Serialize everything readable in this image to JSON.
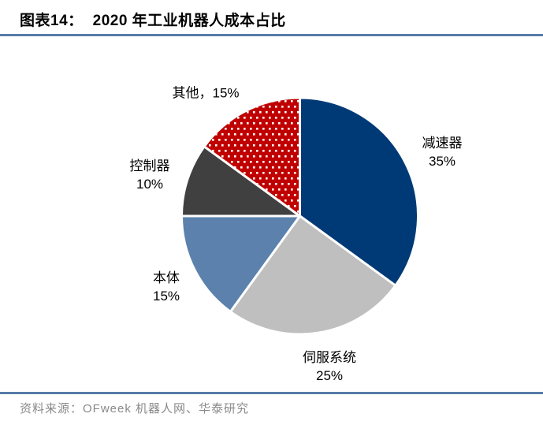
{
  "header": {
    "tag": "图表14：",
    "title": "2020 年工业机器人成本占比"
  },
  "chart_data": {
    "type": "pie",
    "title": "2020 年工业机器人成本占比",
    "unit": "%",
    "start_angle_deg": 0,
    "direction": "clockwise",
    "legend_position": "none",
    "slices": [
      {
        "name": "减速器",
        "value": 35,
        "color": "#003A76",
        "fill_style": "solid",
        "label_lines": [
          "减速器",
          "35%"
        ]
      },
      {
        "name": "伺服系统",
        "value": 25,
        "color": "#BFBFBF",
        "fill_style": "solid",
        "label_lines": [
          "伺服系统",
          "25%"
        ]
      },
      {
        "name": "本体",
        "value": 15,
        "color": "#5B81AC",
        "fill_style": "solid",
        "label_lines": [
          "本体",
          "15%"
        ]
      },
      {
        "name": "控制器",
        "value": 10,
        "color": "#404040",
        "fill_style": "solid",
        "label_lines": [
          "控制器",
          "10%"
        ]
      },
      {
        "name": "其他",
        "value": 15,
        "color": "#C00000",
        "fill_style": "white-dots",
        "label_lines": [
          "其他，15%"
        ]
      }
    ]
  },
  "footer": {
    "source": "资料来源：OFweek 机器人网、华泰研究"
  },
  "colors": {
    "accent_line": "#567CA8",
    "slice_border": "#FFFFFF",
    "source_text": "#898989"
  }
}
